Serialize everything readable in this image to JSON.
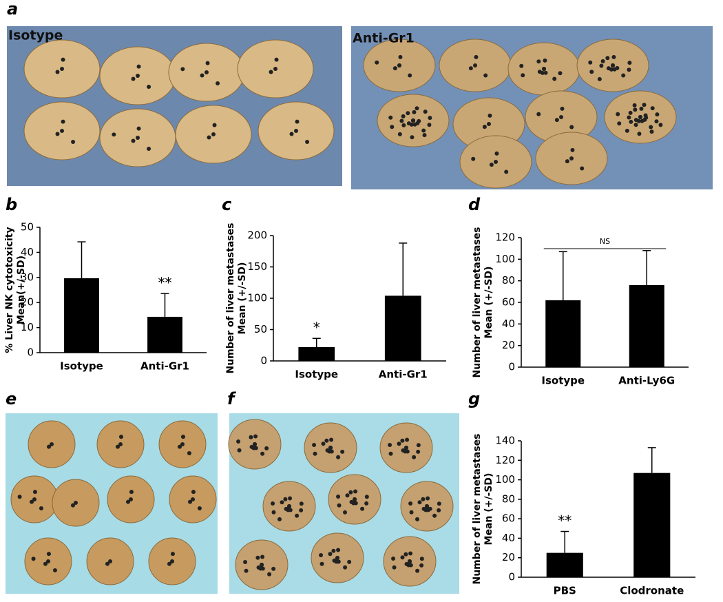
{
  "panels": {
    "a": "a",
    "b": "b",
    "c": "c",
    "d": "d",
    "e": "e",
    "f": "f",
    "g": "g"
  },
  "photos": {
    "left_label": "Isotype",
    "right_label": "Anti-Gr1"
  },
  "chart_data": [
    {
      "type": "bar",
      "ylabel": [
        "% Liver NK cytotoxicity",
        "Mean(+/-SD)"
      ],
      "categories": [
        "Isotype",
        "Anti-Gr1"
      ],
      "values": [
        29.7,
        14.3
      ],
      "errors": [
        14.5,
        9.3
      ],
      "annotations": [
        null,
        "**"
      ],
      "color": "#000000",
      "ylim": [
        0,
        50
      ],
      "yticks": [
        0,
        10,
        20,
        30,
        40,
        50
      ]
    },
    {
      "type": "bar",
      "ylabel": [
        "Number of liver metastases",
        "Mean (+/-SD)"
      ],
      "categories": [
        "Isotype",
        "Anti-Gr1"
      ],
      "values": [
        22,
        104
      ],
      "errors": [
        14,
        84
      ],
      "annotations": [
        "*",
        null
      ],
      "color": "#000000",
      "ylim": [
        0,
        200
      ],
      "yticks": [
        0,
        50,
        100,
        150,
        200
      ]
    },
    {
      "type": "bar",
      "ylabel": [
        "Number of liver metastases",
        "Mean (+/-SD)"
      ],
      "categories": [
        "Isotype",
        "Anti-Ly6G"
      ],
      "values": [
        62,
        76
      ],
      "errors": [
        45,
        32
      ],
      "bracket_annotation": "NS",
      "color": "#000000",
      "ylim": [
        0,
        120
      ],
      "yticks": [
        0,
        20,
        40,
        60,
        80,
        100,
        120
      ]
    },
    {
      "type": "bar",
      "ylabel": [
        "Number of liver metastases",
        "Mean (+/-SD)"
      ],
      "categories": [
        "PBS",
        "Clodronate"
      ],
      "values": [
        25,
        107
      ],
      "errors": [
        22,
        26
      ],
      "annotations": [
        "**",
        null
      ],
      "color": "#000000",
      "ylim": [
        0,
        140
      ],
      "yticks": [
        0,
        20,
        40,
        60,
        80,
        100,
        120,
        140
      ]
    }
  ]
}
